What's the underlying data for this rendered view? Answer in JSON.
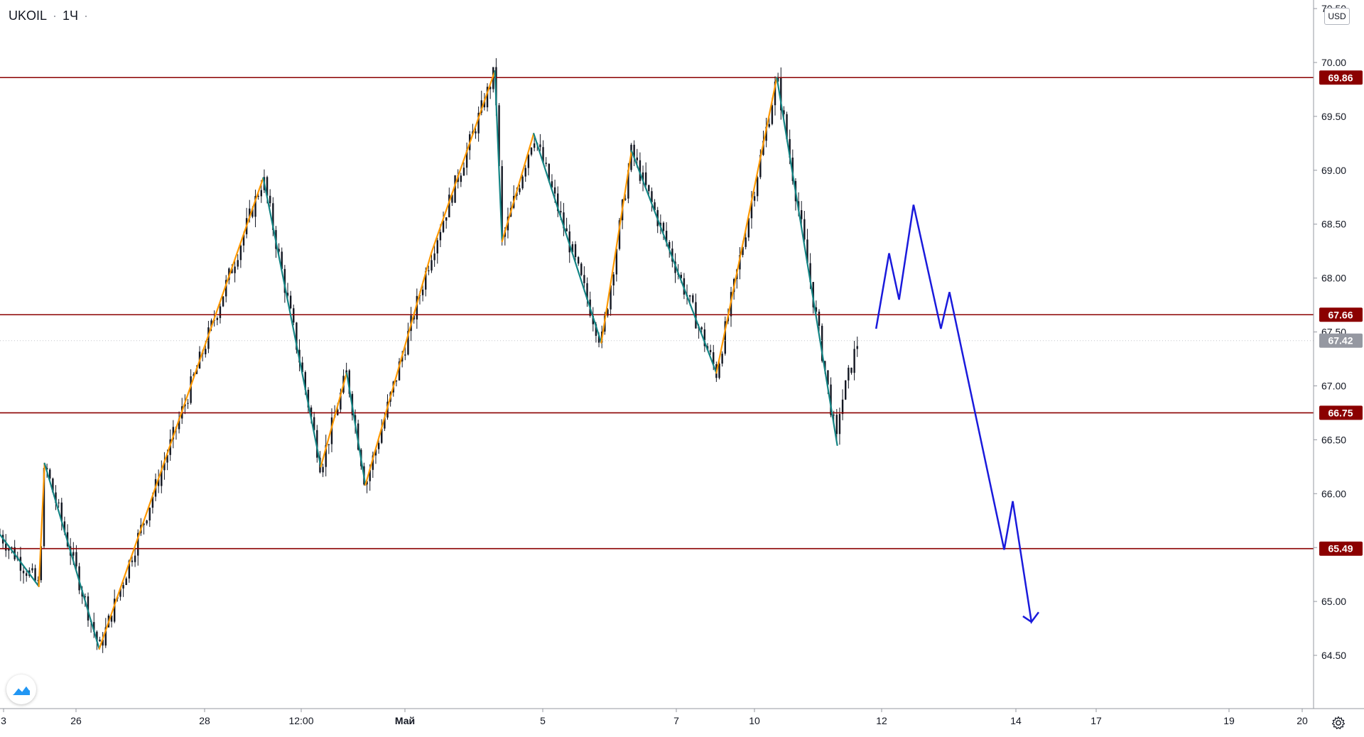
{
  "legend": {
    "symbol": "UKOIL",
    "interval": "1Ч"
  },
  "currency": "USD",
  "chart_data": {
    "type": "candlestick",
    "title": "UKOIL · 1Ч",
    "yaxis": {
      "ticks": [
        70.5,
        70.0,
        69.5,
        69.0,
        68.5,
        68.0,
        67.5,
        67.0,
        66.5,
        66.0,
        65.5,
        65.0,
        64.5
      ],
      "range": [
        64.05,
        70.55
      ]
    },
    "xaxis": {
      "labels": [
        "3",
        "26",
        "28",
        "12:00",
        "Май",
        "5",
        "7",
        "10",
        "12",
        "14",
        "17",
        "19",
        "20"
      ]
    },
    "current_price": 67.42,
    "horizontal_levels": [
      69.86,
      67.66,
      66.75,
      65.49
    ],
    "zigzag": [
      [
        0,
        65.62
      ],
      [
        2.7,
        65.14
      ],
      [
        3.1,
        66.28
      ],
      [
        6.9,
        64.56
      ],
      [
        18.3,
        68.93
      ],
      [
        22.3,
        66.25
      ],
      [
        24.1,
        67.12
      ],
      [
        25.4,
        66.08
      ],
      [
        30.0,
        68.24
      ],
      [
        34.4,
        69.92
      ],
      [
        34.9,
        68.34
      ],
      [
        37.1,
        69.34
      ],
      [
        41.8,
        67.4
      ],
      [
        43.9,
        69.18
      ],
      [
        49.8,
        67.12
      ],
      [
        54.0,
        69.86
      ],
      [
        58.2,
        66.45
      ]
    ],
    "projection": [
      [
        60.9,
        67.53
      ],
      [
        61.8,
        68.23
      ],
      [
        62.5,
        67.8
      ],
      [
        63.5,
        68.68
      ],
      [
        65.4,
        67.53
      ],
      [
        66.0,
        67.87
      ],
      [
        69.8,
        65.48
      ],
      [
        70.4,
        65.93
      ],
      [
        71.7,
        64.81
      ],
      [
        72.2,
        64.9
      ]
    ]
  },
  "colors": {
    "candle": "#131722",
    "level": "#8b0000",
    "label_bg": "#8b0000",
    "zigzag_up": "#ff9800",
    "zigzag_down": "#138484",
    "projection": "#1a1adc",
    "current": "#9598a1",
    "grid_text": "#131722"
  },
  "icons": {
    "logo": "tradingview-logo-icon",
    "settings": "gear-icon"
  }
}
